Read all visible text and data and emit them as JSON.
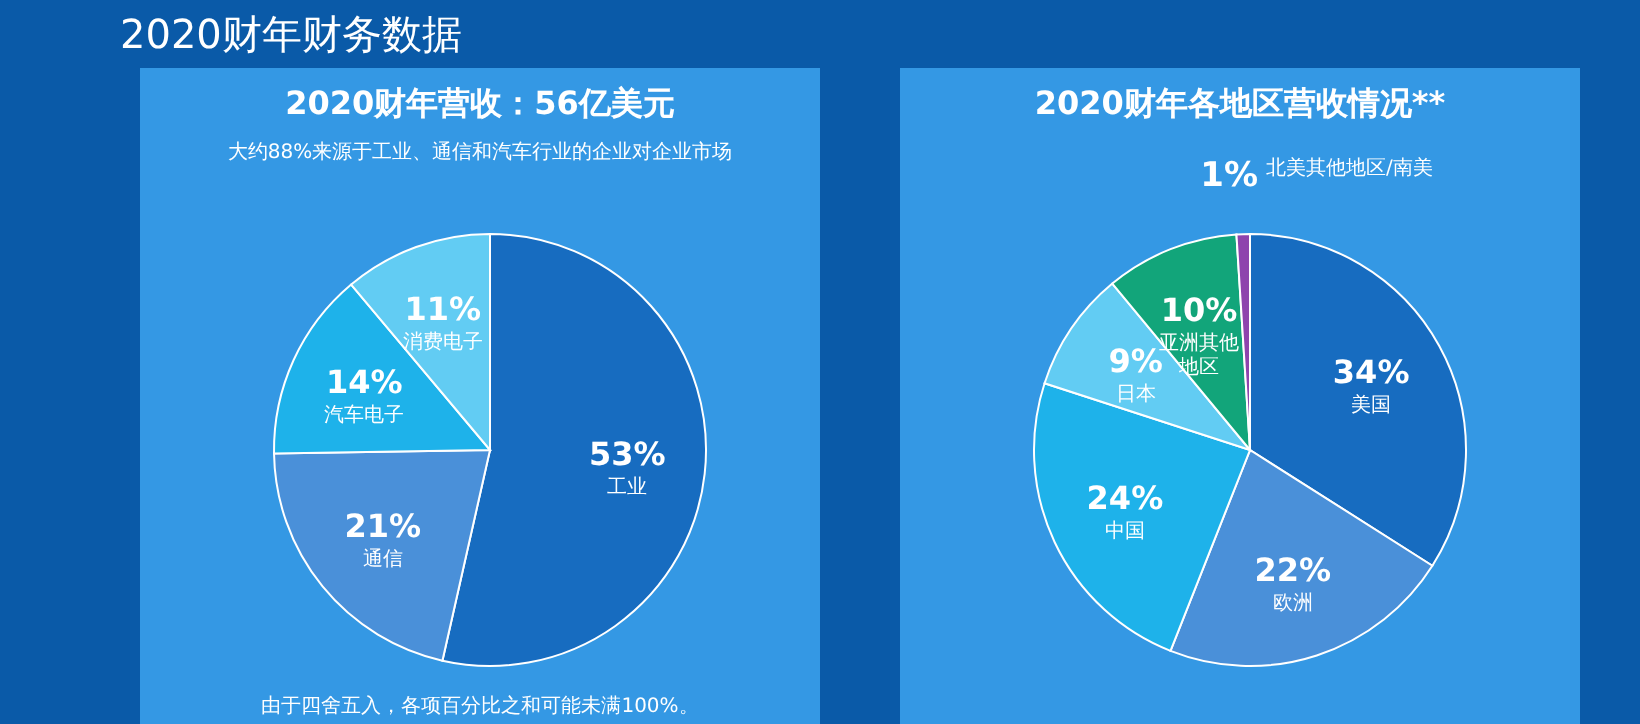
{
  "chart_data": [
    {
      "type": "pie",
      "title": "2020财年营收：56亿美元",
      "subtitle": "大约88%来源于工业、通信和汽车行业的企业对企业市场",
      "categories": [
        "工业",
        "通信",
        "汽车电子",
        "消费电子"
      ],
      "values": [
        53,
        21,
        14,
        11
      ],
      "colors": [
        "#176cc0",
        "#4a90d9",
        "#1eb2ea",
        "#62ccf3"
      ],
      "value_labels": [
        "53%",
        "21%",
        "14%",
        "11%"
      ],
      "annotations": [
        "2020财年财务数据",
        "由于四舍五入，各项百分比之和可能未满100%。"
      ]
    },
    {
      "type": "pie",
      "title": "2020财年各地区营收情况**",
      "categories": [
        "美国",
        "欧洲",
        "中国",
        "日本",
        "亚洲其他地区",
        "北美其他地区/南美"
      ],
      "values": [
        34,
        22,
        24,
        9,
        10,
        1
      ],
      "colors": [
        "#176cc0",
        "#4a90d9",
        "#1eb2ea",
        "#62ccf3",
        "#12a57a",
        "#8e44ad"
      ],
      "value_labels": [
        "34%",
        "22%",
        "24%",
        "9%",
        "10%",
        "1%"
      ]
    }
  ]
}
